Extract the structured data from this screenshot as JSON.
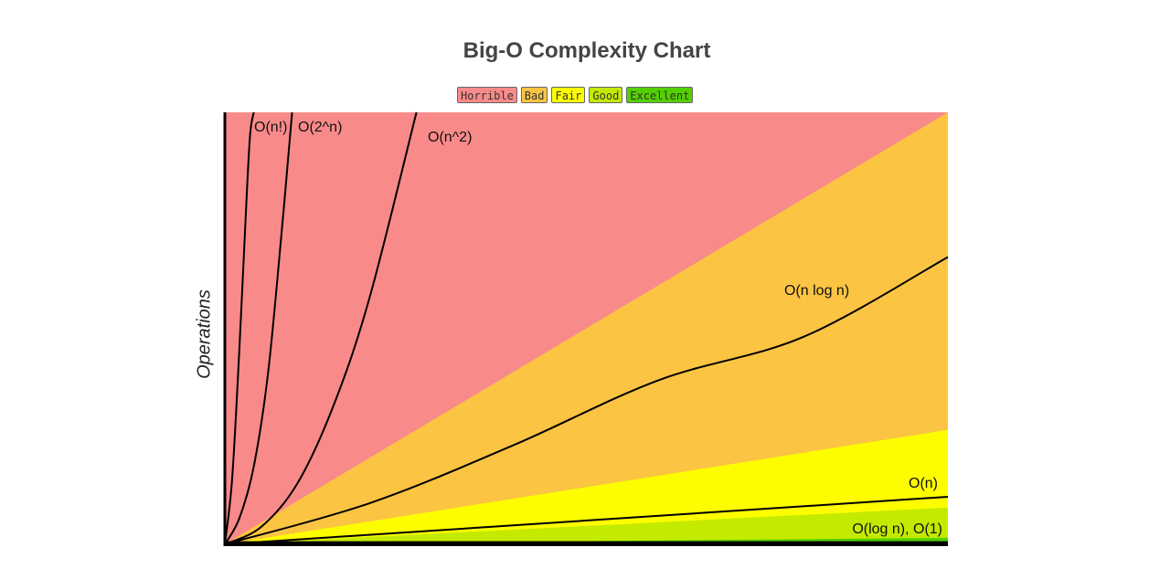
{
  "chart_data": {
    "type": "area",
    "title": "Big-O Complexity Chart",
    "xlabel": "",
    "ylabel": "Operations",
    "xlim": [
      0,
      100
    ],
    "ylim": [
      0,
      100
    ],
    "grid": false,
    "legend_position": "top-center",
    "legend": [
      {
        "name": "Horrible",
        "color": "#f98a8a"
      },
      {
        "name": "Bad",
        "color": "#fbc443"
      },
      {
        "name": "Fair",
        "color": "#fdfd00"
      },
      {
        "name": "Good",
        "color": "#c4ea00"
      },
      {
        "name": "Excellent",
        "color": "#53d000"
      }
    ],
    "regions": [
      {
        "name": "Horrible",
        "color": "#f98a8a",
        "upper_at_x_max": 100
      },
      {
        "name": "Bad",
        "color": "#fbc443",
        "upper_at_x_max": 100
      },
      {
        "name": "Fair",
        "color": "#fdfd00",
        "upper_at_x_max": 26.5
      },
      {
        "name": "Good",
        "color": "#c4ea00",
        "upper_at_x_max": 8.5
      },
      {
        "name": "Excellent",
        "color": "#53d000",
        "upper_at_x_max": 1.5
      }
    ],
    "series": [
      {
        "name": "O(n!)",
        "curve": "factorial",
        "x": [
          0,
          1,
          2,
          3,
          3.5,
          4
        ],
        "y": [
          0,
          15,
          45,
          80,
          95,
          100
        ]
      },
      {
        "name": "O(2^n)",
        "curve": "exponential",
        "x": [
          0,
          2,
          4,
          6,
          8,
          9.3
        ],
        "y": [
          0,
          6,
          18,
          40,
          75,
          100
        ]
      },
      {
        "name": "O(n^2)",
        "curve": "quadratic",
        "x": [
          0,
          5,
          10,
          15,
          20,
          26.5
        ],
        "y": [
          0,
          4,
          14,
          32,
          57,
          100
        ]
      },
      {
        "name": "O(n log n)",
        "curve": "nlogn",
        "x": [
          0,
          20,
          40,
          60,
          80,
          100
        ],
        "y": [
          0,
          9.5,
          23,
          38,
          48,
          66.5
        ]
      },
      {
        "name": "O(n)",
        "curve": "linear",
        "x": [
          0,
          100
        ],
        "y": [
          0,
          11
        ]
      },
      {
        "name": "O(log n), O(1)",
        "curve": "constant",
        "x": [
          0,
          100
        ],
        "y": [
          0.4,
          0.4
        ]
      }
    ]
  }
}
